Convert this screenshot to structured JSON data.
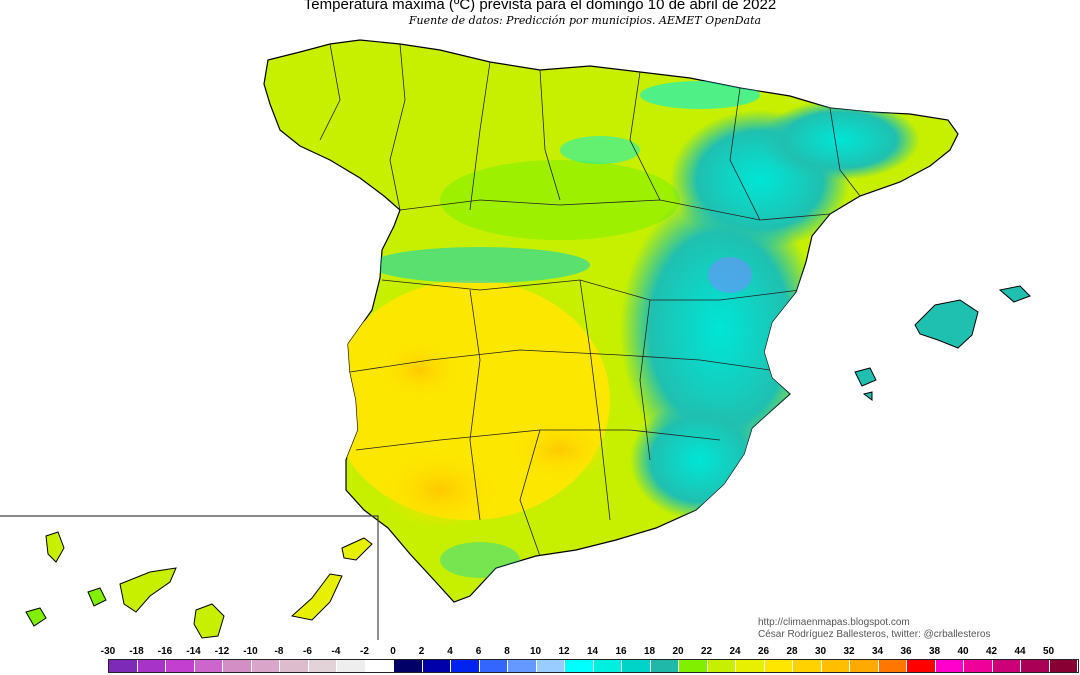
{
  "map": {
    "title": "Temperatura máxima (ºC) prevista para el domingo 10 de abril de 2022",
    "subtitle": "Fuente de datos: Predicción por municipios. AEMET OpenData",
    "credit_url": "http://climaenmapas.blogspot.com",
    "credit_author": "César Rodríguez Ballesteros, twitter: @crballesteros",
    "region": "Península Ibérica, Baleares y Canarias",
    "colors": {
      "yellow_green": "#c6f000",
      "green": "#80f000",
      "yellow": "#ffe600",
      "orange": "#ffc800",
      "cyan": "#00e6d6",
      "teal": "#20c0b0",
      "blue": "#7090ff"
    }
  },
  "legend": {
    "labels": [
      "-30",
      "-18",
      "-16",
      "-14",
      "-12",
      "-10",
      "-8",
      "-6",
      "-4",
      "-2",
      "0",
      "2",
      "4",
      "6",
      "8",
      "10",
      "12",
      "14",
      "16",
      "18",
      "20",
      "22",
      "24",
      "26",
      "28",
      "30",
      "32",
      "34",
      "36",
      "38",
      "40",
      "42",
      "44",
      "50"
    ],
    "colors": [
      "#7d2ab8",
      "#a833c9",
      "#c23fcf",
      "#cc66cc",
      "#d38ec6",
      "#d9a5c8",
      "#ddbccd",
      "#e2d3d8",
      "#eeeeee",
      "#ffffff",
      "#000066",
      "#0000aa",
      "#0022ee",
      "#3366ff",
      "#6699ff",
      "#99ccff",
      "#00ffff",
      "#00f0e0",
      "#00d4c8",
      "#20b8a8",
      "#80f000",
      "#c6f000",
      "#e6f000",
      "#ffe600",
      "#ffd200",
      "#ffbe00",
      "#ffaa00",
      "#ff7700",
      "#ff0000",
      "#ff00cc",
      "#ee0099",
      "#cc0077",
      "#aa0055",
      "#880033"
    ]
  }
}
